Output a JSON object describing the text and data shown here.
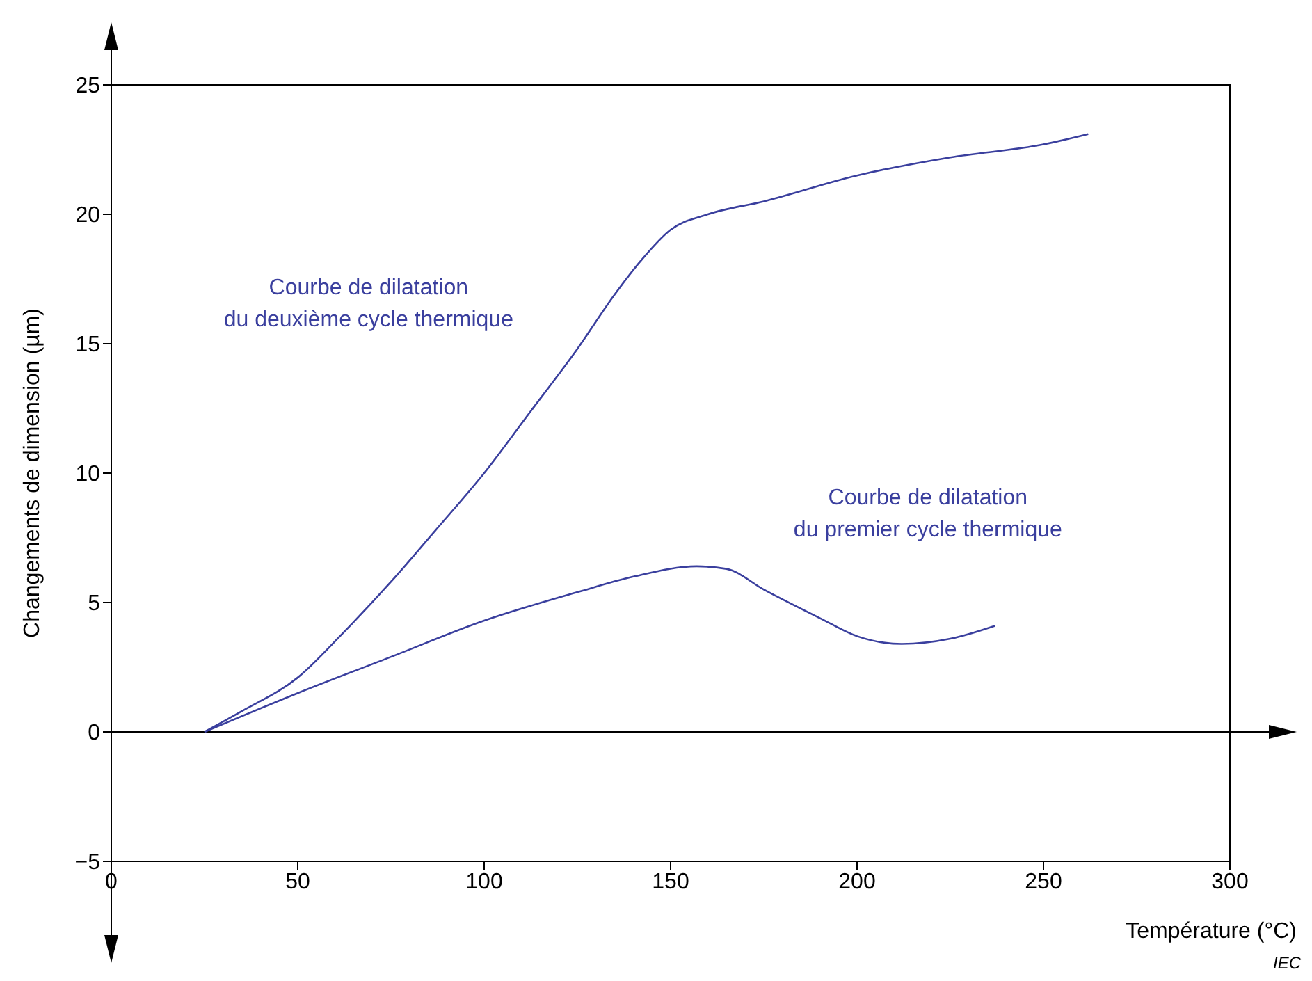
{
  "chart_data": {
    "type": "line",
    "xlabel": "Température  (°C)",
    "ylabel": "Changements de dimension  (µm)",
    "xlim": [
      0,
      300
    ],
    "xticks": [
      0,
      50,
      100,
      150,
      200,
      250,
      300
    ],
    "ylim": [
      -5,
      25
    ],
    "yticks": [
      -5,
      0,
      5,
      10,
      15,
      20,
      25
    ],
    "grid": false,
    "legend": false,
    "marker": "none",
    "line_style": "solid",
    "ref_lines": [
      {
        "axis": "y",
        "value": 0,
        "color": "#000000"
      }
    ],
    "annotations": [
      "IEC"
    ],
    "series": [
      {
        "name": "Courbe de dilatation\ndu deuxième cycle thermique",
        "color": "#3a3f9e",
        "x": [
          25,
          35,
          50,
          62,
          75,
          87,
          100,
          112,
          125,
          135,
          142,
          150,
          160,
          175,
          200,
          225,
          250,
          262
        ],
        "values": [
          0,
          0.8,
          2.1,
          3.8,
          5.8,
          7.8,
          10,
          12.3,
          14.8,
          16.9,
          18.2,
          19.4,
          20,
          20.5,
          21.5,
          22.2,
          22.7,
          23.1
        ]
      },
      {
        "name": "Courbe de dilatation\ndu premier cycle thermique",
        "color": "#3a3f9e",
        "x": [
          25,
          50,
          75,
          100,
          125,
          140,
          157,
          165,
          175,
          190,
          200,
          212,
          225,
          237
        ],
        "values": [
          0,
          1.5,
          2.9,
          4.3,
          5.4,
          6.0,
          6.4,
          6.3,
          5.5,
          4.4,
          3.7,
          3.4,
          3.6,
          4.1
        ]
      }
    ]
  }
}
